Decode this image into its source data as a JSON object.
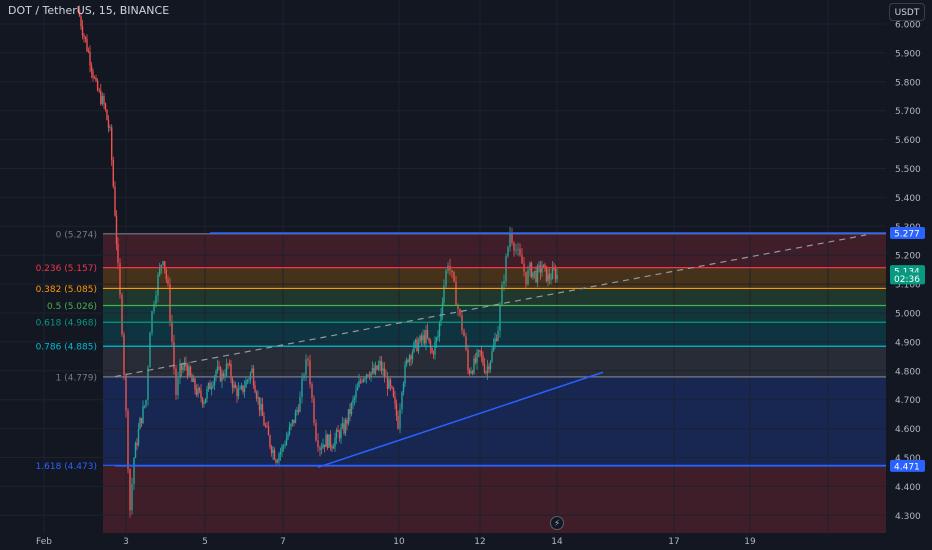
{
  "header": {
    "symbol_title": "DOT / TetherUS, 15, BINANCE",
    "currency_button": "USDT"
  },
  "price_axis": {
    "ticks": [
      "6.000",
      "5.900",
      "5.800",
      "5.700",
      "5.600",
      "5.500",
      "5.400",
      "5.300",
      "5.200",
      "5.100",
      "5.000",
      "4.900",
      "4.800",
      "4.700",
      "4.600",
      "4.500",
      "4.400",
      "4.300"
    ],
    "range": [
      4.27,
      6.04
    ]
  },
  "time_axis": {
    "labels": [
      "Feb",
      "3",
      "5",
      "7",
      "10",
      "12",
      "14",
      "17",
      "19"
    ]
  },
  "fib_levels": [
    {
      "label": "0 (5.274)",
      "price": 5.274,
      "color": "#787b86"
    },
    {
      "label": "0.236 (5.157)",
      "price": 5.157,
      "color": "#f23645"
    },
    {
      "label": "0.382 (5.085)",
      "price": 5.085,
      "color": "#ff9800"
    },
    {
      "label": "0.5 (5.026)",
      "price": 5.026,
      "color": "#4caf50"
    },
    {
      "label": "0.618 (4.968)",
      "price": 4.968,
      "color": "#089981"
    },
    {
      "label": "0.786 (4.885)",
      "price": 4.885,
      "color": "#00bcd4"
    },
    {
      "label": "1 (4.779)",
      "price": 4.779,
      "color": "#787b86"
    },
    {
      "label": "1.618 (4.473)",
      "price": 4.473,
      "color": "#2962ff"
    }
  ],
  "price_tags": [
    {
      "text": "5.277",
      "price": 5.277,
      "color": "#2962ff"
    },
    {
      "text": "5.134",
      "price": 5.145,
      "color": "#089981"
    },
    {
      "text": "02:36",
      "price": 5.12,
      "color": "#089981"
    },
    {
      "text": "4.471",
      "price": 4.471,
      "color": "#2962ff"
    }
  ],
  "colors": {
    "background": "#131722",
    "up": "#26a69a",
    "down": "#ef5350",
    "trendline": "#2962ff"
  }
}
